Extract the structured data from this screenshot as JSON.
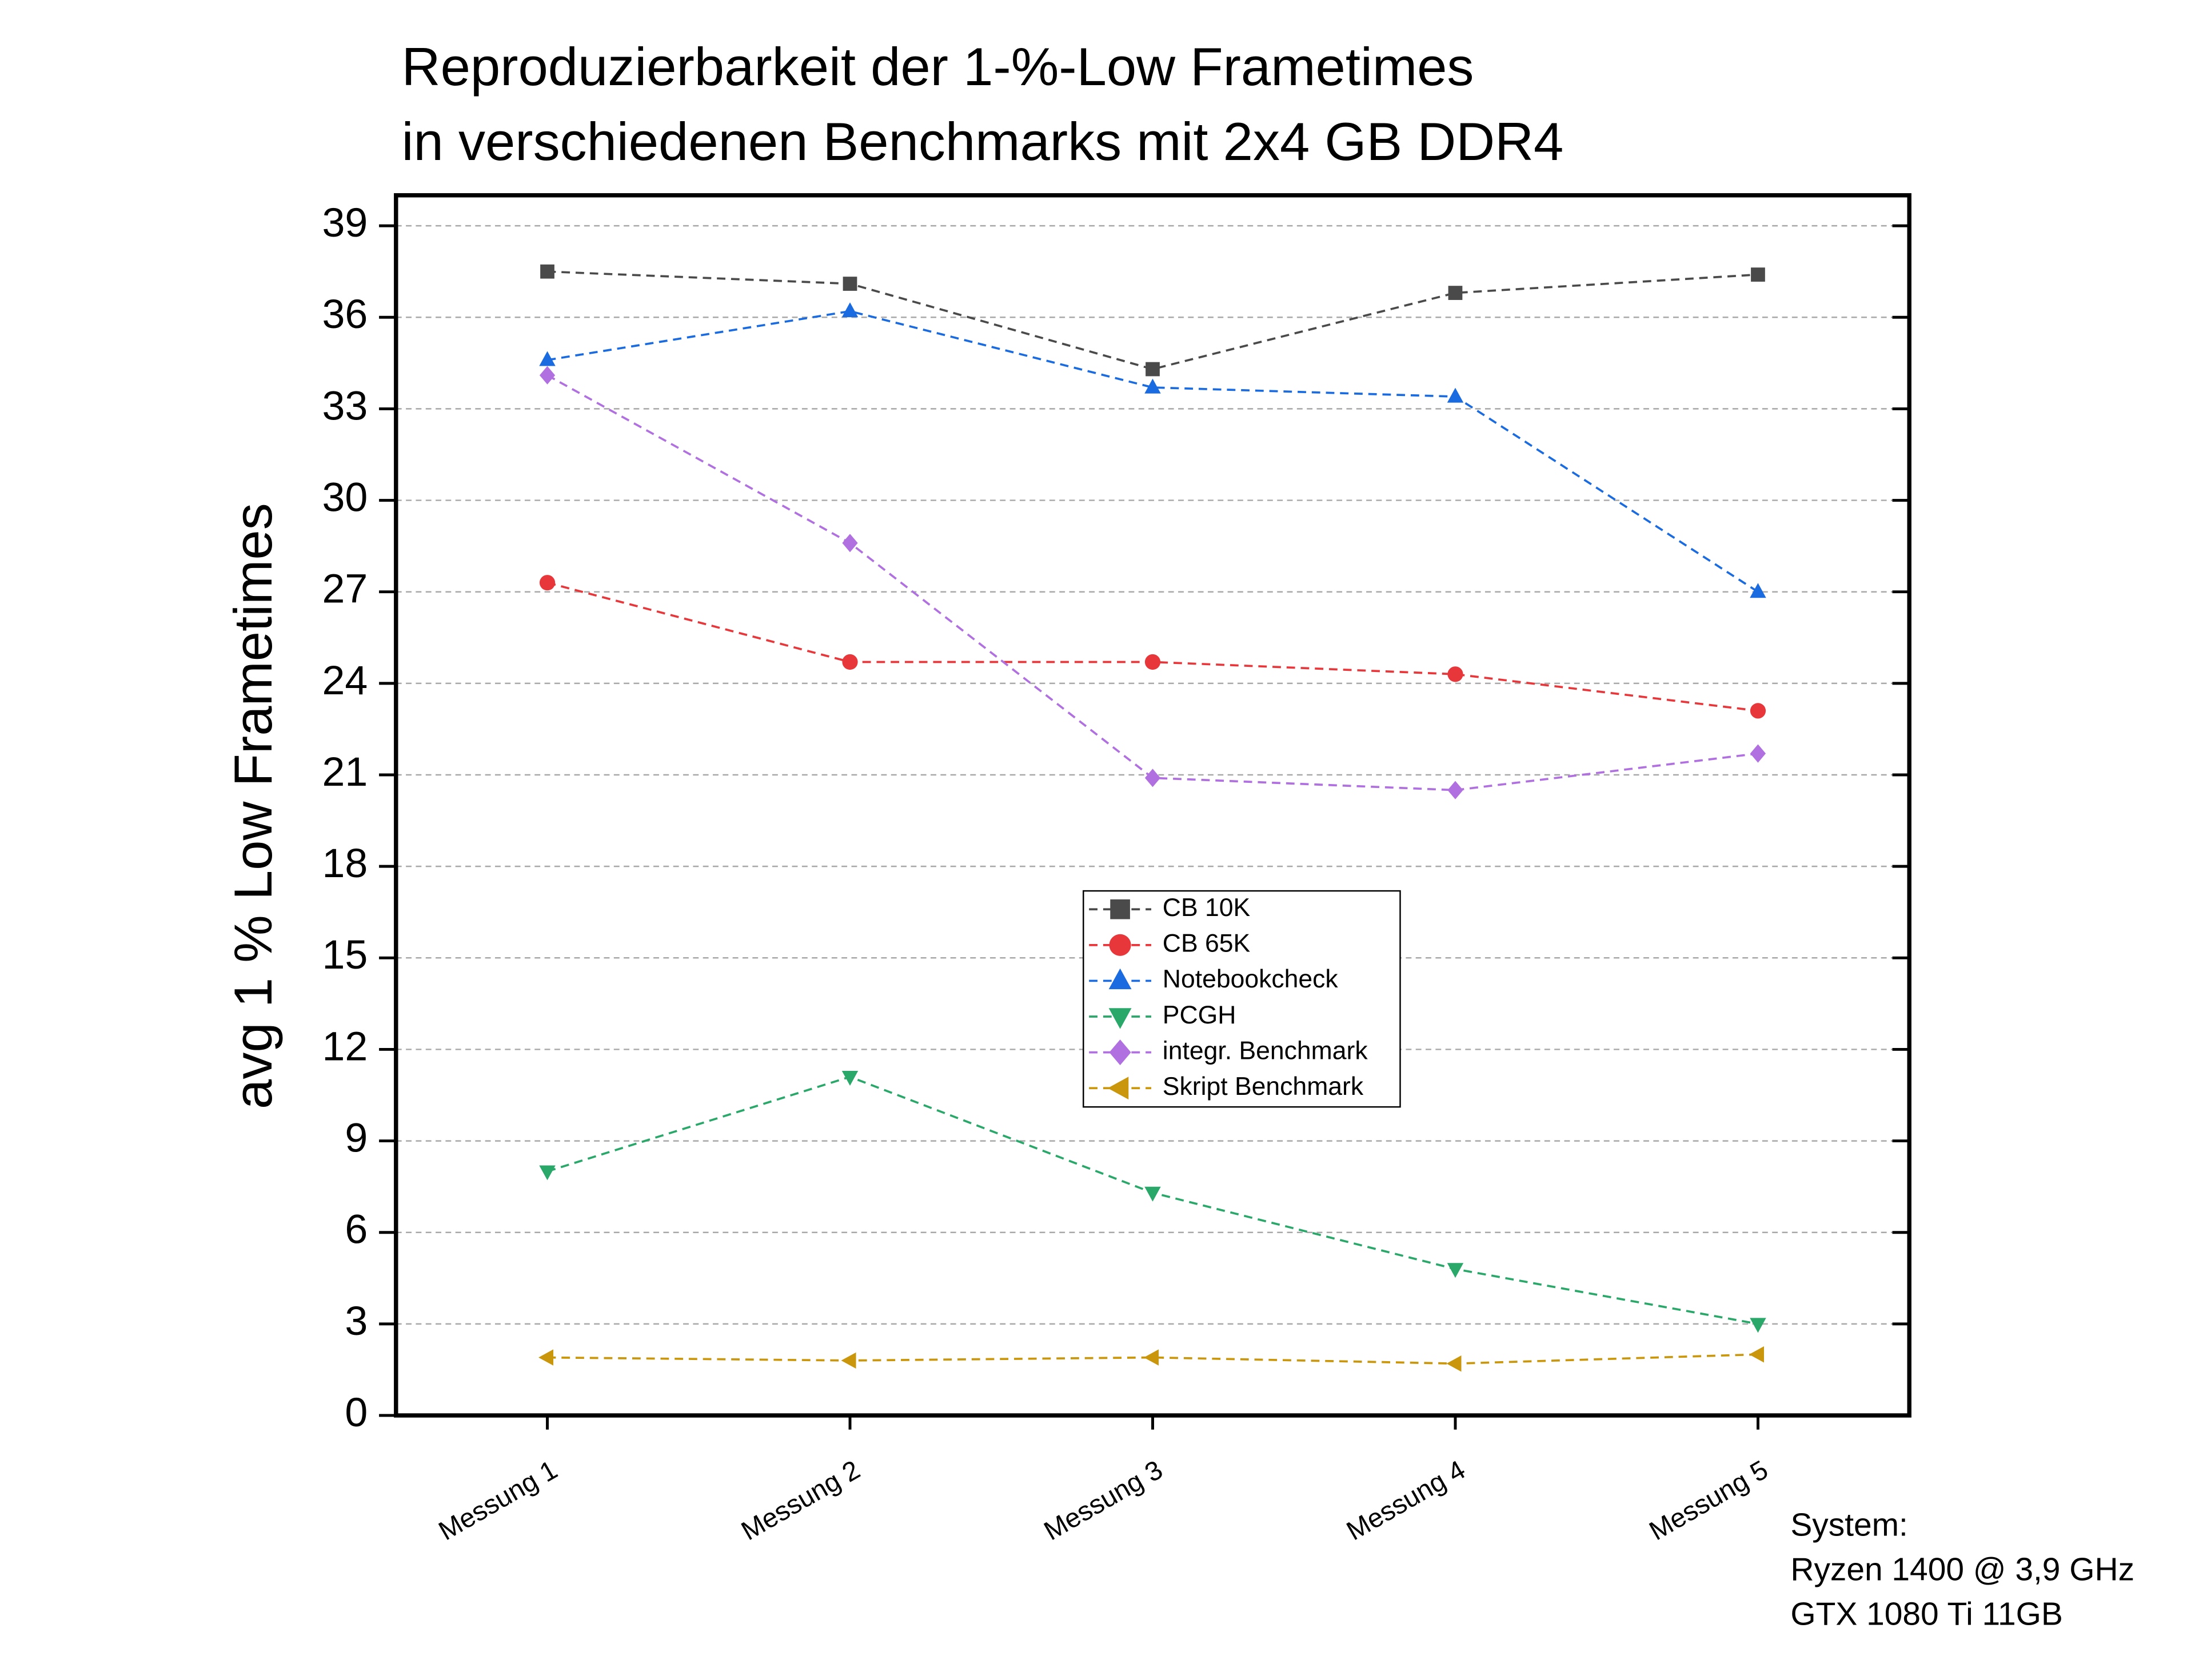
{
  "chart_data": {
    "type": "line",
    "title": [
      "Reproduzierbarkeit der 1-%-Low Frametimes",
      "in verschiedenen Benchmarks mit 2x4 GB DDR4"
    ],
    "y_label": "avg 1 % Low Frametimes",
    "categories": [
      "Messung 1",
      "Messung 2",
      "Messung 3",
      "Messung 4",
      "Messung 5"
    ],
    "series": [
      {
        "name": "CB 10K",
        "color": "#4a4a4a",
        "marker": "square",
        "values": [
          37.5,
          37.1,
          34.3,
          36.8,
          37.4
        ]
      },
      {
        "name": "CB 65K",
        "color": "#e8373a",
        "marker": "circle",
        "values": [
          27.3,
          24.7,
          24.7,
          24.3,
          23.1
        ]
      },
      {
        "name": "Notebookcheck",
        "color": "#1a6be0",
        "marker": "triangle-up",
        "values": [
          34.6,
          36.2,
          33.7,
          33.4,
          27.0
        ]
      },
      {
        "name": "PCGH",
        "color": "#2aa86a",
        "marker": "triangle-down",
        "values": [
          8.0,
          11.1,
          7.3,
          4.8,
          3.0
        ]
      },
      {
        "name": "integr. Benchmark",
        "color": "#b070e0",
        "marker": "diamond",
        "values": [
          34.1,
          28.6,
          20.9,
          20.5,
          21.7
        ]
      },
      {
        "name": "Skript Benchmark",
        "color": "#c9960c",
        "marker": "triangle-left",
        "values": [
          1.9,
          1.8,
          1.9,
          1.7,
          2.0
        ]
      }
    ],
    "ylim": [
      0,
      40
    ],
    "yticks": [
      0,
      3,
      6,
      9,
      12,
      15,
      18,
      21,
      24,
      27,
      30,
      33,
      36,
      39
    ],
    "grid": true,
    "annotation": [
      "System:",
      "Ryzen 1400 @ 3,9 GHz",
      "GTX 1080 Ti 11GB"
    ]
  }
}
